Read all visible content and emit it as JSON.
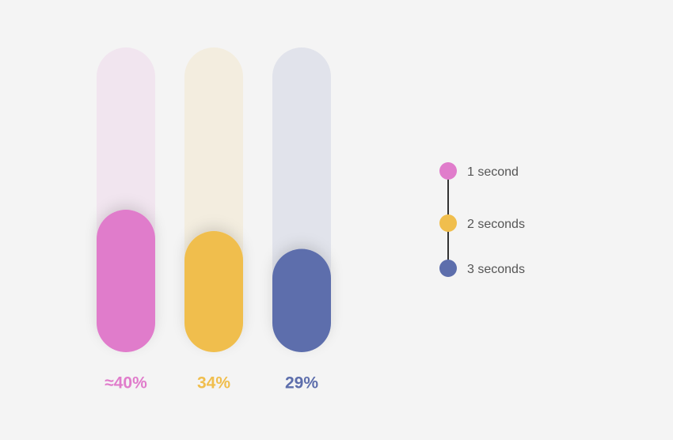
{
  "chart_data": {
    "type": "bar",
    "categories": [
      "1 second",
      "2 seconds",
      "3 seconds"
    ],
    "values": [
      40,
      34,
      29
    ],
    "value_labels": [
      "≈40%",
      "34%",
      "29%"
    ],
    "colors": [
      "#e07ccb",
      "#f0be4d",
      "#5d6eac"
    ]
  }
}
